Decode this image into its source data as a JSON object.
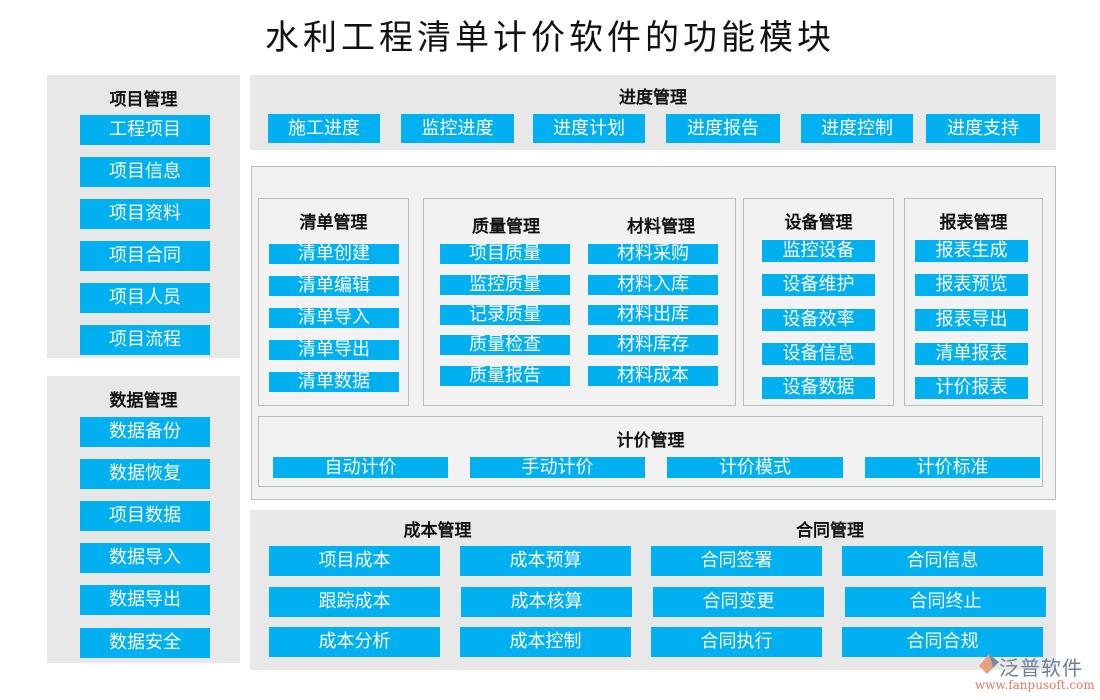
{
  "title": "水利工程清单计价软件的功能模块",
  "colors": {
    "button": "#00B0F0",
    "panel": "#E8E8E8",
    "box": "#F2F2F2"
  },
  "project": {
    "title": "项目管理",
    "items": [
      "工程项目",
      "项目信息",
      "项目资料",
      "项目合同",
      "项目人员",
      "项目流程"
    ]
  },
  "data_mgmt": {
    "title": "数据管理",
    "items": [
      "数据备份",
      "数据恢复",
      "项目数据",
      "数据导入",
      "数据导出",
      "数据安全"
    ]
  },
  "progress": {
    "title": "进度管理",
    "items": [
      "施工进度",
      "监控进度",
      "进度计划",
      "进度报告",
      "进度控制",
      "进度支持"
    ]
  },
  "bill": {
    "title": "清单管理",
    "items": [
      "清单创建",
      "清单编辑",
      "清单导入",
      "清单导出",
      "清单数据"
    ]
  },
  "quality": {
    "title": "质量管理",
    "items": [
      "项目质量",
      "监控质量",
      "记录质量",
      "质量检查",
      "质量报告"
    ]
  },
  "material": {
    "title": "材料管理",
    "items": [
      "材料采购",
      "材料入库",
      "材料出库",
      "材料库存",
      "材料成本"
    ]
  },
  "equipment": {
    "title": "设备管理",
    "items": [
      "监控设备",
      "设备维护",
      "设备效率",
      "设备信息",
      "设备数据"
    ]
  },
  "report": {
    "title": "报表管理",
    "items": [
      "报表生成",
      "报表预览",
      "报表导出",
      "清单报表",
      "计价报表"
    ]
  },
  "pricing": {
    "title": "计价管理",
    "items": [
      "自动计价",
      "手动计价",
      "计价模式",
      "计价标准"
    ]
  },
  "cost": {
    "title": "成本管理",
    "items": [
      "项目成本",
      "成本预算",
      "跟踪成本",
      "成本核算",
      "成本分析",
      "成本控制"
    ]
  },
  "contract": {
    "title": "合同管理",
    "items": [
      "合同签署",
      "合同信息",
      "合同变更",
      "合同终止",
      "合同执行",
      "合同合规"
    ]
  },
  "logo": {
    "name": "泛普软件",
    "url": "www.fanpusoft.com"
  }
}
